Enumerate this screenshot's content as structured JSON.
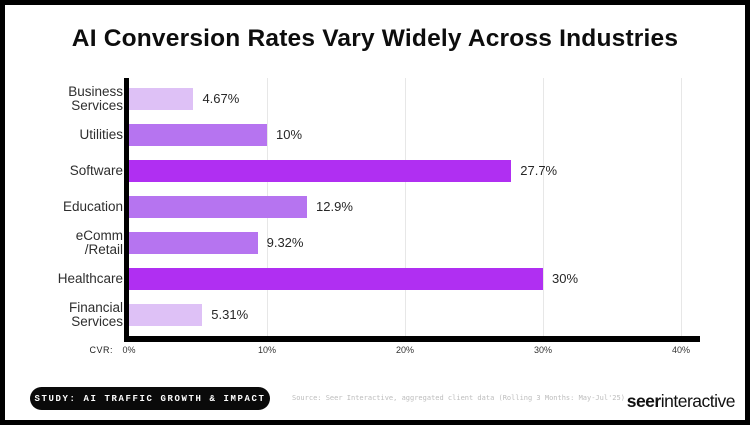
{
  "title": "AI Conversion Rates Vary Widely Across Industries",
  "chart_data": {
    "type": "bar",
    "orientation": "horizontal",
    "title": "AI Conversion Rates Vary Widely Across Industries",
    "categories": [
      "Business Services",
      "Utilities",
      "Software",
      "Education",
      "eComm /Retail",
      "Healthcare",
      "Financial Services"
    ],
    "category_label_lines": [
      [
        "Business",
        "Services"
      ],
      [
        "Utilities"
      ],
      [
        "Software"
      ],
      [
        "Education"
      ],
      [
        "eComm",
        "/Retail"
      ],
      [
        "Healthcare"
      ],
      [
        "Financial",
        "Services"
      ]
    ],
    "values": [
      4.67,
      10,
      27.7,
      12.9,
      9.32,
      30,
      5.31
    ],
    "value_labels": [
      "4.67%",
      "10%",
      "27.7%",
      "12.9%",
      "9.32%",
      "30%",
      "5.31%"
    ],
    "bar_colors": [
      "#dec1f6",
      "#b674f0",
      "#b02ff2",
      "#b674f0",
      "#b674f0",
      "#b02ff2",
      "#dec1f6"
    ],
    "xlabel": "CVR:",
    "x_tick_labels": [
      "0%",
      "10%",
      "20%",
      "30%",
      "40%"
    ],
    "x_tick_values": [
      0,
      10,
      20,
      30,
      40
    ],
    "xlim": [
      0,
      40
    ],
    "grid": "vertical",
    "legend": "none"
  },
  "footer": {
    "study_badge": "STUDY: AI TRAFFIC GROWTH & IMPACT",
    "source": "Source: Seer Interactive, aggregated client data (Rolling 3 Months: May-Jul'25)",
    "logo": {
      "bold": "seer",
      "regular": "interactive"
    }
  },
  "colors": {
    "bar_light": "#dec1f6",
    "bar_medium": "#b674f0",
    "bar_vivid": "#b02ff2",
    "axis": "#000000",
    "gridline": "#e7e7e7",
    "badge_bg": "#0a0a0a",
    "badge_text": "#ffffff",
    "source_text": "#bdbdbd",
    "title_text": "#0d0d0d"
  }
}
